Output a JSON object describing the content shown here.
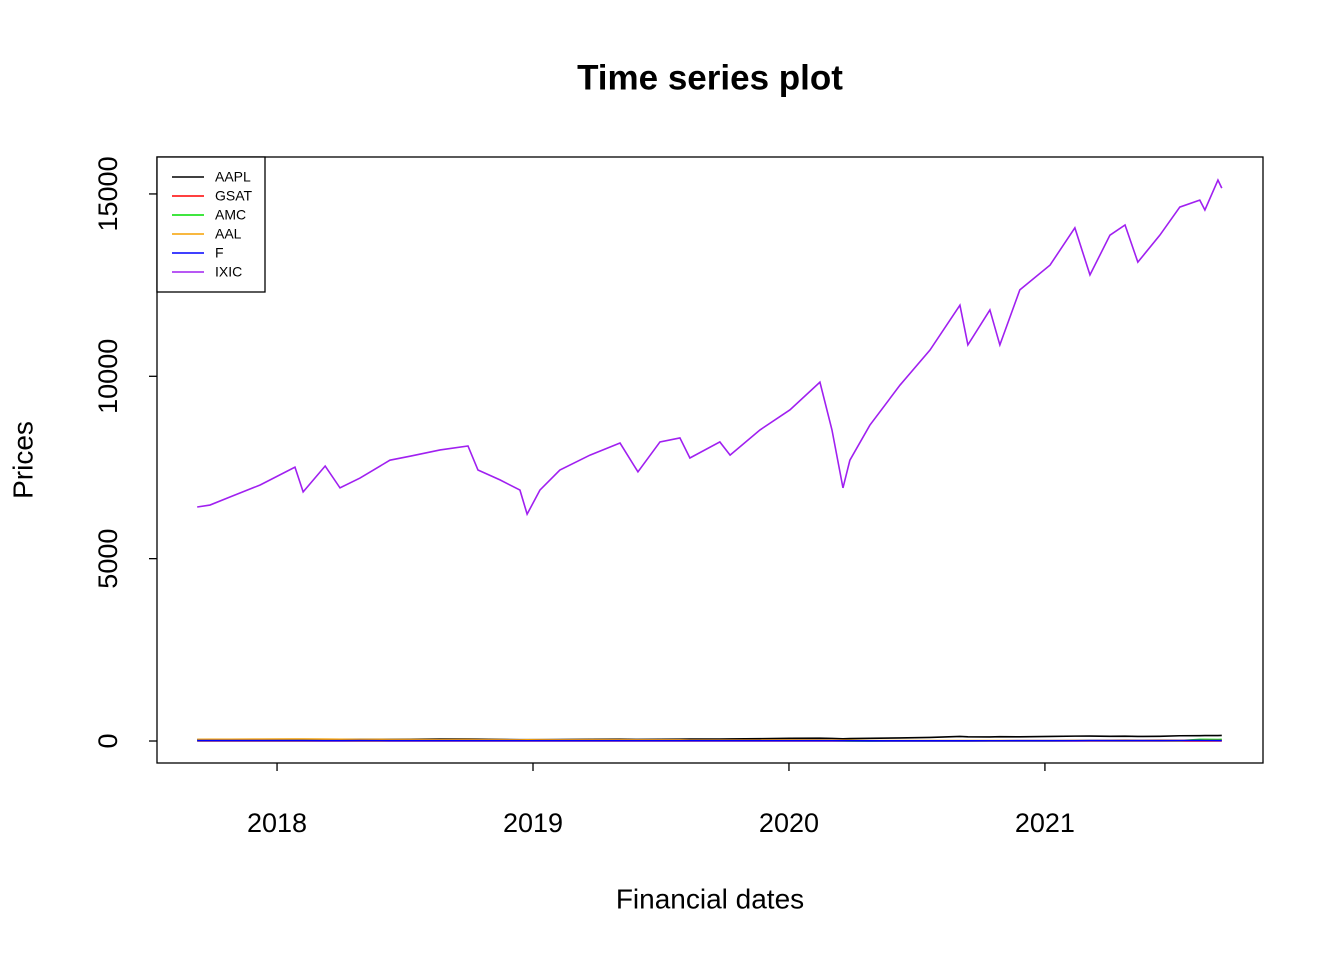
{
  "chart_data": {
    "type": "line",
    "title": "Time series plot",
    "x_label": "Financial dates",
    "y_label": "Prices",
    "x": [
      2017.688,
      2017.738,
      2017.816,
      2017.934,
      2018.07,
      2018.102,
      2018.188,
      2018.246,
      2018.324,
      2018.441,
      2018.52,
      2018.637,
      2018.746,
      2018.785,
      2018.871,
      2018.949,
      2018.977,
      2019.027,
      2019.105,
      2019.223,
      2019.34,
      2019.41,
      2019.496,
      2019.574,
      2019.613,
      2019.73,
      2019.77,
      2019.887,
      2020.004,
      2020.121,
      2020.168,
      2020.211,
      2020.238,
      2020.316,
      2020.434,
      2020.551,
      2020.668,
      2020.699,
      2020.785,
      2020.824,
      2020.902,
      2021.02,
      2021.117,
      2021.176,
      2021.254,
      2021.313,
      2021.363,
      2021.449,
      2021.527,
      2021.605,
      2021.625,
      2021.676,
      2021.691
    ],
    "series": [
      {
        "name": "AAPL",
        "color": "#000000",
        "values": [
          37,
          38,
          40,
          41,
          42,
          40,
          42,
          41,
          44,
          45,
          47,
          52,
          54,
          50,
          44,
          38,
          37,
          37,
          41,
          47,
          50,
          43,
          48,
          50,
          52,
          55,
          57,
          64,
          74,
          78,
          72,
          62,
          68,
          75,
          85,
          97,
          125,
          115,
          113,
          118,
          116,
          125,
          134,
          136,
          130,
          133,
          125,
          130,
          144,
          146,
          148,
          150,
          153
        ]
      },
      {
        "name": "GSAT",
        "color": "#ff0000",
        "values": [
          1.8,
          1.7,
          1.6,
          1.5,
          1.2,
          1.1,
          0.9,
          0.8,
          0.7,
          0.6,
          0.6,
          0.6,
          0.5,
          0.5,
          0.4,
          0.5,
          0.5,
          0.6,
          0.6,
          0.5,
          0.5,
          0.4,
          0.4,
          0.3,
          0.3,
          0.3,
          0.4,
          0.4,
          0.3,
          0.3,
          0.3,
          0.2,
          0.3,
          0.3,
          0.3,
          0.4,
          0.4,
          0.4,
          0.4,
          0.4,
          0.4,
          0.5,
          1.2,
          2.0,
          1.5,
          1.4,
          1.3,
          1.6,
          1.7,
          1.5,
          1.4,
          1.3,
          1.3
        ]
      },
      {
        "name": "AMC",
        "color": "#00dd00",
        "values": [
          13,
          14,
          15,
          16,
          17,
          15,
          16,
          15,
          17,
          17,
          16,
          17,
          18,
          17,
          16,
          14,
          13,
          13,
          15,
          16,
          15,
          13,
          12,
          11,
          10,
          9,
          8,
          7,
          8,
          7,
          7,
          6,
          3,
          3,
          4,
          5,
          5,
          4,
          4,
          4,
          4,
          4,
          7,
          14,
          10,
          10,
          12,
          11,
          13,
          45,
          42,
          40,
          45
        ]
      },
      {
        "name": "AAL",
        "color": "#f5a000",
        "values": [
          44,
          46,
          48,
          51,
          53,
          52,
          51,
          48,
          44,
          41,
          39,
          38,
          41,
          37,
          35,
          33,
          32,
          35,
          33,
          36,
          36,
          32,
          34,
          32,
          28,
          27,
          28,
          28,
          29,
          28,
          27,
          25,
          21,
          13,
          11,
          12,
          11,
          12,
          13,
          11,
          13,
          14,
          15,
          16,
          20,
          22,
          20,
          22,
          21,
          21,
          21,
          20,
          20
        ]
      },
      {
        "name": "F",
        "color": "#0000ff",
        "values": [
          11,
          11,
          11,
          12,
          11,
          11,
          10,
          10,
          11,
          10,
          10,
          10,
          10,
          9,
          9,
          8,
          7,
          8,
          9,
          9,
          9,
          10,
          9,
          9,
          9,
          9,
          9,
          9,
          9,
          8,
          8,
          8,
          7,
          5,
          5,
          5,
          6,
          6,
          7,
          7,
          8,
          9,
          10,
          11,
          12,
          12,
          12,
          12,
          14,
          15,
          14,
          13,
          13
        ]
      },
      {
        "name": "IXIC",
        "color": "#a020f0",
        "values": [
          6416,
          6470,
          6690,
          7020,
          7510,
          6830,
          7540,
          6940,
          7210,
          7700,
          7810,
          7980,
          8090,
          7430,
          7160,
          6880,
          6220,
          6880,
          7430,
          7840,
          8170,
          7380,
          8200,
          8310,
          7760,
          8200,
          7840,
          8530,
          9080,
          9840,
          8530,
          6940,
          7700,
          8660,
          9760,
          10720,
          11950,
          10860,
          11820,
          10860,
          12370,
          13050,
          14070,
          12780,
          13870,
          14150,
          13130,
          13870,
          14640,
          14830,
          14560,
          15380,
          15160
        ]
      }
    ],
    "xlim": [
      2017.531,
      2021.852
    ],
    "xticks": [
      2018,
      2019,
      2020,
      2021
    ],
    "ylim": [
      -603,
      16013
    ],
    "yticks": [
      0,
      5000,
      10000,
      15000
    ],
    "legend": "topleft",
    "grid": false
  }
}
